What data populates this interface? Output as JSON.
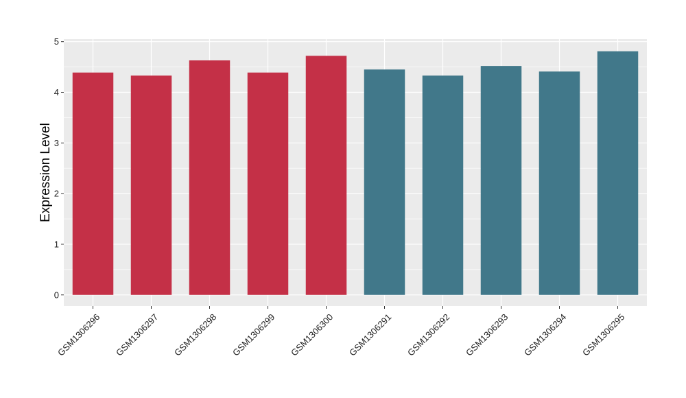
{
  "chart_data": {
    "type": "bar",
    "title": "",
    "xlabel": "",
    "ylabel": "Expression Level",
    "ylim": [
      -0.22,
      5.05
    ],
    "yticks": [
      0,
      1,
      2,
      3,
      4,
      5
    ],
    "grid": true,
    "legend": "none",
    "categories": [
      "GSM1306296",
      "GSM1306297",
      "GSM1306298",
      "GSM1306299",
      "GSM1306300",
      "GSM1306291",
      "GSM1306292",
      "GSM1306293",
      "GSM1306294",
      "GSM1306295"
    ],
    "values": [
      4.39,
      4.33,
      4.63,
      4.39,
      4.72,
      4.45,
      4.33,
      4.52,
      4.41,
      4.81
    ],
    "colors": [
      "#c43047",
      "#c43047",
      "#c43047",
      "#c43047",
      "#c43047",
      "#41788a",
      "#41788a",
      "#41788a",
      "#41788a",
      "#41788a"
    ],
    "panel_background": "#ebebeb",
    "grid_color": "#ffffff"
  }
}
